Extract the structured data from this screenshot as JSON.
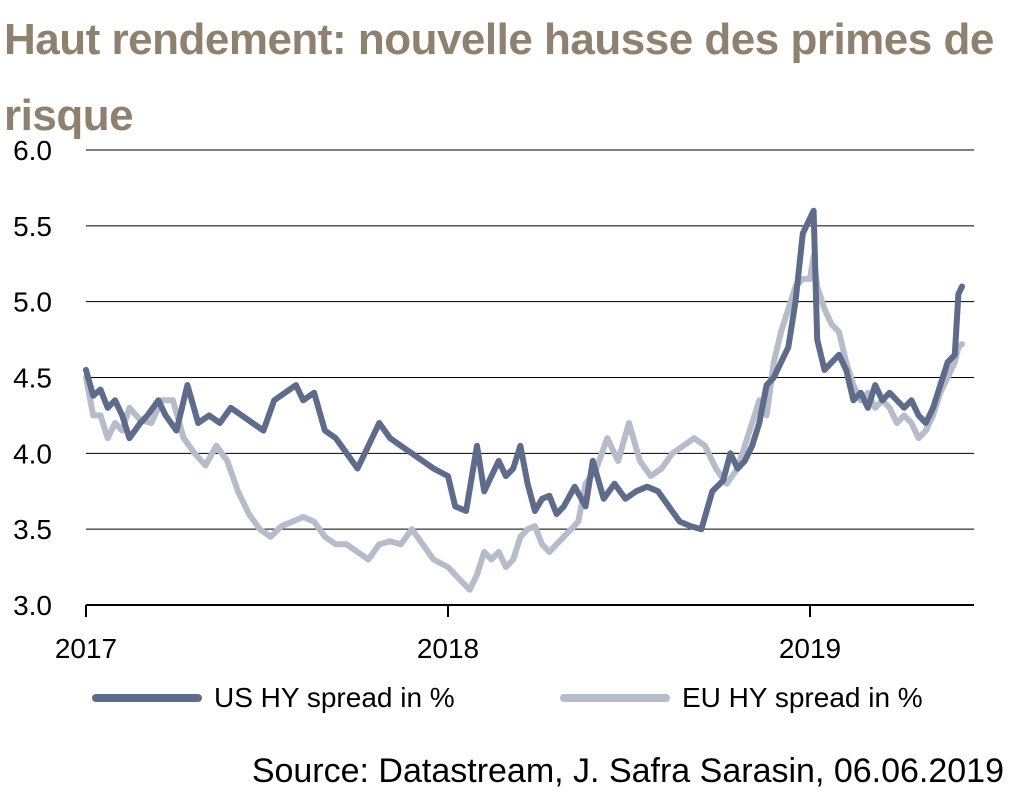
{
  "title": "Haut rendement: nouvelle hausse des primes de risque",
  "source": "Source: Datastream, J. Safra Sarasin, 06.06.2019",
  "colors": {
    "us": "#5f6b8b",
    "eu": "#b6bcc9",
    "title": "#8e8170"
  },
  "chart_data": {
    "type": "line",
    "title": "Haut rendement: nouvelle hausse des primes de risque",
    "xlabel": "",
    "ylabel": "",
    "xlim": [
      2017.0,
      2019.44
    ],
    "ylim": [
      3.0,
      6.0
    ],
    "yticks": [
      "6.0",
      "5.5",
      "5.0",
      "4.5",
      "4.0",
      "3.5",
      "3.0"
    ],
    "xticks": [
      "2017",
      "2018",
      "2019"
    ],
    "grid": "horizontal",
    "legend_position": "bottom",
    "series": [
      {
        "name": "US HY spread in %",
        "x": [
          2017.0,
          2017.02,
          2017.04,
          2017.06,
          2017.08,
          2017.1,
          2017.12,
          2017.15,
          2017.17,
          2017.2,
          2017.22,
          2017.25,
          2017.28,
          2017.31,
          2017.34,
          2017.37,
          2017.4,
          2017.43,
          2017.46,
          2017.49,
          2017.52,
          2017.55,
          2017.58,
          2017.6,
          2017.63,
          2017.66,
          2017.69,
          2017.72,
          2017.75,
          2017.78,
          2017.81,
          2017.84,
          2017.87,
          2017.9,
          2017.93,
          2017.96,
          2018.0,
          2018.02,
          2018.05,
          2018.08,
          2018.1,
          2018.12,
          2018.14,
          2018.16,
          2018.18,
          2018.2,
          2018.22,
          2018.24,
          2018.26,
          2018.28,
          2018.3,
          2018.32,
          2018.35,
          2018.38,
          2018.4,
          2018.43,
          2018.46,
          2018.49,
          2018.52,
          2018.55,
          2018.58,
          2018.61,
          2018.64,
          2018.67,
          2018.7,
          2018.73,
          2018.76,
          2018.78,
          2018.8,
          2018.82,
          2018.84,
          2018.86,
          2018.88,
          2018.9,
          2018.92,
          2018.94,
          2018.96,
          2018.98,
          2019.0,
          2019.01,
          2019.02,
          2019.04,
          2019.06,
          2019.08,
          2019.1,
          2019.12,
          2019.14,
          2019.16,
          2019.18,
          2019.2,
          2019.22,
          2019.24,
          2019.26,
          2019.28,
          2019.3,
          2019.32,
          2019.34,
          2019.36,
          2019.38,
          2019.4,
          2019.41,
          2019.42
        ],
        "values": [
          4.55,
          4.38,
          4.42,
          4.3,
          4.35,
          4.25,
          4.1,
          4.2,
          4.25,
          4.35,
          4.25,
          4.15,
          4.45,
          4.2,
          4.25,
          4.2,
          4.3,
          4.25,
          4.2,
          4.15,
          4.35,
          4.4,
          4.45,
          4.35,
          4.4,
          4.15,
          4.1,
          4.0,
          3.9,
          4.05,
          4.2,
          4.1,
          4.05,
          4.0,
          3.95,
          3.9,
          3.85,
          3.65,
          3.62,
          4.05,
          3.75,
          3.85,
          3.95,
          3.85,
          3.9,
          4.05,
          3.8,
          3.62,
          3.7,
          3.72,
          3.6,
          3.65,
          3.78,
          3.65,
          3.95,
          3.7,
          3.8,
          3.7,
          3.75,
          3.78,
          3.75,
          3.65,
          3.55,
          3.52,
          3.5,
          3.75,
          3.82,
          4.0,
          3.9,
          3.95,
          4.05,
          4.2,
          4.45,
          4.5,
          4.6,
          4.7,
          5.0,
          5.45,
          5.55,
          5.6,
          4.75,
          4.55,
          4.6,
          4.65,
          4.55,
          4.35,
          4.4,
          4.3,
          4.45,
          4.35,
          4.4,
          4.35,
          4.3,
          4.35,
          4.25,
          4.2,
          4.3,
          4.45,
          4.6,
          4.65,
          5.05,
          5.1
        ]
      },
      {
        "name": "EU HY spread in %",
        "x": [
          2017.0,
          2017.02,
          2017.04,
          2017.06,
          2017.08,
          2017.1,
          2017.12,
          2017.15,
          2017.18,
          2017.21,
          2017.24,
          2017.27,
          2017.3,
          2017.33,
          2017.36,
          2017.39,
          2017.42,
          2017.45,
          2017.48,
          2017.51,
          2017.54,
          2017.57,
          2017.6,
          2017.63,
          2017.66,
          2017.69,
          2017.72,
          2017.75,
          2017.78,
          2017.81,
          2017.84,
          2017.87,
          2017.9,
          2017.93,
          2017.96,
          2018.0,
          2018.02,
          2018.04,
          2018.06,
          2018.08,
          2018.1,
          2018.12,
          2018.14,
          2018.16,
          2018.18,
          2018.2,
          2018.22,
          2018.24,
          2018.26,
          2018.28,
          2018.3,
          2018.32,
          2018.34,
          2018.36,
          2018.38,
          2018.41,
          2018.44,
          2018.47,
          2018.5,
          2018.53,
          2018.56,
          2018.59,
          2018.62,
          2018.65,
          2018.68,
          2018.71,
          2018.74,
          2018.77,
          2018.8,
          2018.82,
          2018.84,
          2018.86,
          2018.88,
          2018.9,
          2018.92,
          2018.94,
          2018.96,
          2018.98,
          2019.0,
          2019.01,
          2019.02,
          2019.04,
          2019.06,
          2019.08,
          2019.1,
          2019.12,
          2019.14,
          2019.16,
          2019.18,
          2019.2,
          2019.22,
          2019.24,
          2019.26,
          2019.28,
          2019.3,
          2019.32,
          2019.34,
          2019.36,
          2019.38,
          2019.4,
          2019.41,
          2019.42
        ],
        "values": [
          4.5,
          4.25,
          4.25,
          4.1,
          4.2,
          4.15,
          4.3,
          4.22,
          4.2,
          4.35,
          4.35,
          4.1,
          4.0,
          3.92,
          4.05,
          3.95,
          3.75,
          3.6,
          3.5,
          3.45,
          3.52,
          3.55,
          3.58,
          3.55,
          3.45,
          3.4,
          3.4,
          3.35,
          3.3,
          3.4,
          3.42,
          3.4,
          3.5,
          3.4,
          3.3,
          3.25,
          3.2,
          3.15,
          3.1,
          3.2,
          3.35,
          3.3,
          3.35,
          3.25,
          3.3,
          3.45,
          3.5,
          3.52,
          3.4,
          3.35,
          3.4,
          3.45,
          3.5,
          3.55,
          3.8,
          3.9,
          4.1,
          3.95,
          4.2,
          3.95,
          3.85,
          3.9,
          4.0,
          4.05,
          4.1,
          4.05,
          3.9,
          3.8,
          3.9,
          4.05,
          4.2,
          4.35,
          4.25,
          4.6,
          4.8,
          4.95,
          5.1,
          5.15,
          5.15,
          5.3,
          5.1,
          4.95,
          4.85,
          4.8,
          4.6,
          4.45,
          4.35,
          4.4,
          4.3,
          4.35,
          4.3,
          4.2,
          4.25,
          4.2,
          4.1,
          4.15,
          4.25,
          4.4,
          4.5,
          4.6,
          4.7,
          4.72
        ]
      }
    ]
  }
}
